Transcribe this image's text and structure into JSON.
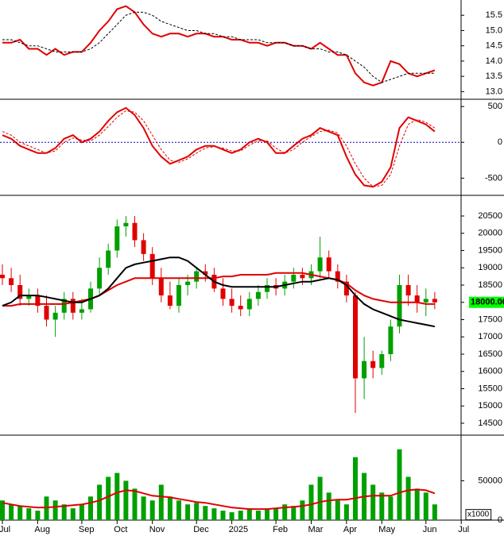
{
  "chart_data": [
    {
      "type": "line",
      "ylim": [
        12.75,
        16.0
      ],
      "yticks": [
        {
          "value": 13,
          "label": "13.0"
        },
        13.5,
        {
          "value": 14,
          "label": "14.0"
        },
        14.5,
        {
          "value": 15,
          "label": "15.0"
        },
        15.5
      ],
      "series": [
        {
          "color": "#e00000",
          "dash": false,
          "values": [
            14.6,
            14.6,
            14.7,
            14.4,
            14.4,
            14.2,
            14.4,
            14.2,
            14.3,
            14.3,
            14.6,
            15.0,
            15.3,
            15.7,
            15.8,
            15.6,
            15.2,
            14.9,
            14.8,
            14.9,
            14.9,
            14.8,
            14.9,
            14.9,
            14.8,
            14.8,
            14.7,
            14.7,
            14.6,
            14.6,
            14.5,
            14.6,
            14.6,
            14.5,
            14.5,
            14.4,
            14.6,
            14.4,
            14.2,
            14.2,
            13.6,
            13.3,
            13.2,
            13.3,
            14.0,
            13.9,
            13.6,
            13.5,
            13.6,
            13.7,
            null,
            null,
            null,
            null
          ]
        },
        {
          "color": "#000000",
          "dash": true,
          "values": [
            14.7,
            14.7,
            14.6,
            14.5,
            14.5,
            14.4,
            14.3,
            14.3,
            14.3,
            14.3,
            14.4,
            14.6,
            14.9,
            15.2,
            15.5,
            15.6,
            15.6,
            15.5,
            15.3,
            15.2,
            15.1,
            15.0,
            15.0,
            14.9,
            14.9,
            14.8,
            14.8,
            14.7,
            14.7,
            14.7,
            14.6,
            14.6,
            14.6,
            14.5,
            14.5,
            14.4,
            14.4,
            14.3,
            14.3,
            14.2,
            14.0,
            13.8,
            13.5,
            13.3,
            13.4,
            13.5,
            13.6,
            13.6,
            13.6,
            13.6,
            null,
            null,
            null,
            null
          ]
        }
      ]
    },
    {
      "type": "line",
      "ylim": [
        -740,
        590
      ],
      "yticks": [
        -500,
        0,
        500
      ],
      "zero_line": true,
      "series": [
        {
          "color": "#e00000",
          "dash": false,
          "values": [
            100,
            50,
            -50,
            -100,
            -150,
            -150,
            -80,
            50,
            100,
            0,
            50,
            150,
            300,
            420,
            480,
            380,
            200,
            -50,
            -200,
            -300,
            -250,
            -200,
            -100,
            -50,
            -50,
            -100,
            -150,
            -100,
            0,
            50,
            0,
            -150,
            -150,
            -50,
            50,
            100,
            200,
            150,
            100,
            -200,
            -450,
            -600,
            -620,
            -550,
            -350,
            200,
            350,
            300,
            250,
            150,
            null,
            null,
            null,
            null
          ]
        },
        {
          "color": "#e00000",
          "dash": true,
          "values": [
            150,
            100,
            0,
            -50,
            -100,
            -150,
            -120,
            0,
            60,
            30,
            20,
            100,
            220,
            350,
            440,
            420,
            300,
            100,
            -100,
            -250,
            -280,
            -230,
            -150,
            -80,
            -60,
            -80,
            -120,
            -120,
            -40,
            20,
            20,
            -80,
            -150,
            -100,
            0,
            80,
            150,
            170,
            130,
            -50,
            -300,
            -500,
            -620,
            -600,
            -450,
            -50,
            250,
            320,
            280,
            200,
            null,
            null,
            null,
            null
          ]
        }
      ]
    },
    {
      "type": "candlestick",
      "ylim": [
        14155,
        21075
      ],
      "yticks": [
        14500,
        15000,
        15500,
        16000,
        16500,
        17000,
        17500,
        18000,
        18500,
        19000,
        19500,
        20000,
        20500
      ],
      "up_color": "#00a000",
      "down_color": "#e00000",
      "open": [
        18800,
        18700,
        18500,
        18100,
        18200,
        17900,
        17500,
        17700,
        18100,
        17700,
        17800,
        18400,
        19000,
        19500,
        20200,
        20300,
        19800,
        19400,
        18700,
        18200,
        17900,
        18500,
        18600,
        18900,
        18800,
        18400,
        18100,
        17900,
        17800,
        18100,
        18300,
        18500,
        18400,
        18600,
        18800,
        18700,
        18900,
        19300,
        18900,
        18600,
        18200,
        15800,
        16300,
        16100,
        16500,
        17300,
        18500,
        18200,
        18000,
        18100,
        null,
        null,
        null,
        null
      ],
      "high": [
        19100,
        19000,
        18800,
        18400,
        18400,
        18200,
        17900,
        18300,
        18300,
        18100,
        18600,
        19300,
        19700,
        20400,
        20500,
        20500,
        20000,
        19600,
        19000,
        18600,
        18700,
        18800,
        19000,
        19100,
        19000,
        18700,
        18400,
        18200,
        18300,
        18500,
        18700,
        18700,
        18800,
        19000,
        19000,
        19100,
        19900,
        19500,
        19100,
        18800,
        18300,
        17000,
        16600,
        16600,
        17500,
        18800,
        18800,
        18500,
        18400,
        18300,
        null,
        null,
        null,
        null
      ],
      "low": [
        18500,
        18300,
        17900,
        17900,
        17700,
        17300,
        17000,
        17500,
        17500,
        17500,
        17700,
        18200,
        18800,
        19300,
        19900,
        19600,
        19200,
        18500,
        18000,
        17800,
        17700,
        18200,
        18400,
        18600,
        18300,
        17900,
        17700,
        17600,
        17600,
        17900,
        18100,
        18200,
        18200,
        18400,
        18500,
        18500,
        18700,
        18700,
        18400,
        18000,
        14800,
        15200,
        15800,
        15900,
        16300,
        17100,
        17900,
        17700,
        17600,
        17800,
        null,
        null,
        null,
        null
      ],
      "close": [
        18700,
        18500,
        18100,
        18200,
        17900,
        17500,
        17700,
        18100,
        17700,
        17800,
        18400,
        19000,
        19500,
        20200,
        20300,
        19800,
        19400,
        18700,
        18200,
        17900,
        18500,
        18600,
        18900,
        18800,
        18400,
        18100,
        17900,
        17800,
        18100,
        18300,
        18500,
        18400,
        18600,
        18800,
        18700,
        18900,
        19300,
        18900,
        18600,
        18200,
        15800,
        16300,
        16100,
        16500,
        17300,
        18500,
        18200,
        18000,
        18100,
        18000,
        null,
        null,
        null,
        null
      ],
      "series": [
        {
          "color": "#e00000",
          "values": [
            17900,
            17900,
            17950,
            17950,
            17950,
            17950,
            17950,
            17950,
            18000,
            18050,
            18100,
            18200,
            18350,
            18500,
            18600,
            18700,
            18700,
            18700,
            18700,
            18700,
            18700,
            18700,
            18700,
            18700,
            18700,
            18750,
            18750,
            18800,
            18800,
            18800,
            18800,
            18850,
            18850,
            18850,
            18850,
            18800,
            18750,
            18700,
            18650,
            18550,
            18350,
            18200,
            18100,
            18050,
            18000,
            18000,
            18000,
            18000,
            17950,
            17950,
            null,
            null,
            null,
            null
          ]
        },
        {
          "color": "#000000",
          "values": [
            17900,
            18000,
            18200,
            18200,
            18200,
            18150,
            18100,
            18050,
            18000,
            18000,
            18100,
            18200,
            18400,
            18700,
            19000,
            19100,
            19150,
            19200,
            19250,
            19300,
            19300,
            19200,
            19000,
            18800,
            18600,
            18500,
            18450,
            18450,
            18450,
            18450,
            18450,
            18450,
            18500,
            18550,
            18600,
            18600,
            18650,
            18700,
            18650,
            18500,
            18200,
            17950,
            17800,
            17700,
            17600,
            17500,
            17450,
            17400,
            17350,
            17300,
            null,
            null,
            null,
            null
          ]
        }
      ],
      "last_price": {
        "value": 18000,
        "label": "18000.00"
      },
      "last_color": "#00ff00"
    },
    {
      "type": "bar",
      "ylim": [
        0,
        107000
      ],
      "yticks": [
        0,
        50000
      ],
      "unit": "x1000",
      "color": "#00a000",
      "categories": [
        "Jul",
        null,
        null,
        null,
        "Aug",
        null,
        null,
        null,
        null,
        "Sep",
        null,
        null,
        null,
        "Oct",
        null,
        null,
        null,
        "Nov",
        null,
        null,
        null,
        null,
        "Dec",
        null,
        null,
        null,
        "2025",
        null,
        null,
        null,
        null,
        "Feb",
        null,
        null,
        null,
        "Mar",
        null,
        null,
        null,
        "Apr",
        null,
        null,
        null,
        "May",
        null,
        null,
        null,
        null,
        "Jun",
        null,
        null,
        null,
        "Jul",
        null
      ],
      "values": [
        25000,
        20000,
        18000,
        15000,
        12000,
        30000,
        25000,
        20000,
        15000,
        20000,
        30000,
        45000,
        55000,
        60000,
        50000,
        40000,
        30000,
        25000,
        45000,
        30000,
        25000,
        20000,
        22000,
        18000,
        15000,
        12000,
        10000,
        12000,
        15000,
        12000,
        14000,
        15000,
        20000,
        18000,
        25000,
        45000,
        55000,
        35000,
        25000,
        20000,
        80000,
        60000,
        45000,
        35000,
        30000,
        90000,
        55000,
        40000,
        35000,
        20000,
        null,
        null,
        null,
        null
      ],
      "series": [
        {
          "color": "#e00000",
          "values": [
            22000,
            20000,
            18000,
            17000,
            16000,
            16000,
            17000,
            18000,
            19000,
            20000,
            22000,
            25000,
            30000,
            35000,
            38000,
            37000,
            34000,
            31000,
            30000,
            29000,
            27000,
            25000,
            23000,
            22000,
            20000,
            18000,
            16000,
            15000,
            14000,
            14000,
            14000,
            15000,
            16000,
            17000,
            18000,
            20000,
            23000,
            25000,
            26000,
            26000,
            28000,
            30000,
            31000,
            31000,
            31000,
            35000,
            38000,
            39000,
            38000,
            34000,
            null,
            null,
            null,
            null
          ]
        }
      ]
    }
  ]
}
